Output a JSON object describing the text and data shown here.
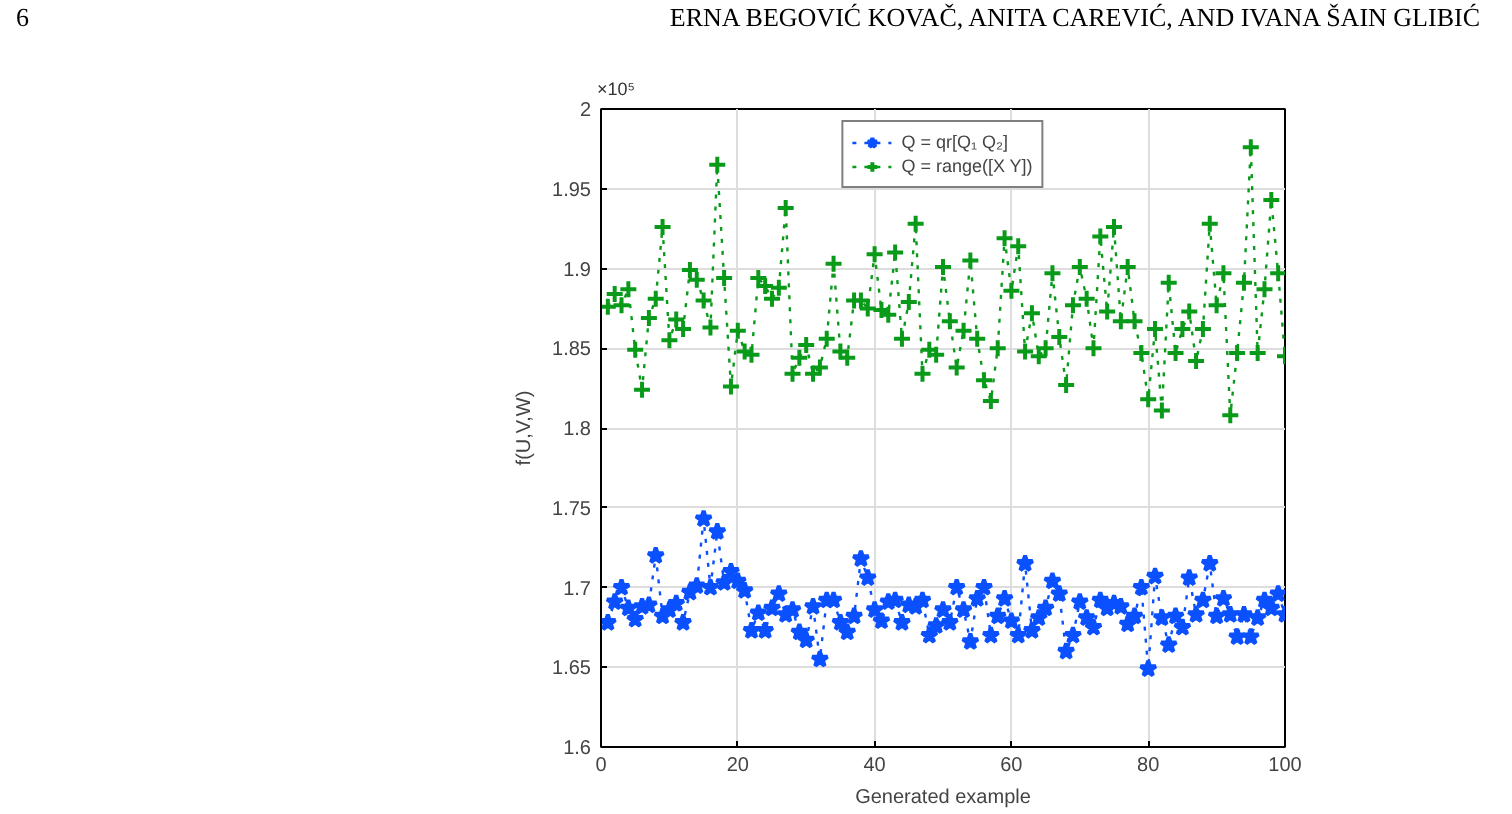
{
  "chart_data": {
    "type": "line",
    "annotations": [
      "6",
      "ERNA BEGOVIĆ KOVAČ, ANITA CAREVIĆ, AND IVANA ŠAIN GLIBIĆ",
      "×10⁵"
    ],
    "xlabel": "Generated example",
    "ylabel": "f(U,V,W)",
    "x": [
      1,
      2,
      3,
      4,
      5,
      6,
      7,
      8,
      9,
      10,
      11,
      12,
      13,
      14,
      15,
      16,
      17,
      18,
      19,
      20,
      21,
      22,
      23,
      24,
      25,
      26,
      27,
      28,
      29,
      30,
      31,
      32,
      33,
      34,
      35,
      36,
      37,
      38,
      39,
      40,
      41,
      42,
      43,
      44,
      45,
      46,
      47,
      48,
      49,
      50,
      51,
      52,
      53,
      54,
      55,
      56,
      57,
      58,
      59,
      60,
      61,
      62,
      63,
      64,
      65,
      66,
      67,
      68,
      69,
      70,
      71,
      72,
      73,
      74,
      75,
      76,
      77,
      78,
      79,
      80,
      81,
      82,
      83,
      84,
      85,
      86,
      87,
      88,
      89,
      90,
      91,
      92,
      93,
      94,
      95,
      96,
      97,
      98,
      99,
      100
    ],
    "series": [
      {
        "name": "Q = qr[Q₁ Q₂]",
        "color": "#0a50ff",
        "marker": "star",
        "values": [
          1.678,
          1.691,
          1.7,
          1.687,
          1.68,
          1.688,
          1.689,
          1.72,
          1.682,
          1.686,
          1.69,
          1.678,
          1.697,
          1.701,
          1.743,
          1.7,
          1.735,
          1.703,
          1.71,
          1.704,
          1.698,
          1.673,
          1.684,
          1.673,
          1.687,
          1.696,
          1.683,
          1.686,
          1.672,
          1.667,
          1.688,
          1.655,
          1.692,
          1.692,
          1.678,
          1.672,
          1.682,
          1.718,
          1.706,
          1.686,
          1.679,
          1.691,
          1.692,
          1.678,
          1.689,
          1.688,
          1.692,
          1.67,
          1.676,
          1.686,
          1.678,
          1.7,
          1.686,
          1.666,
          1.693,
          1.7,
          1.67,
          1.682,
          1.693,
          1.679,
          1.67,
          1.715,
          1.673,
          1.681,
          1.687,
          1.704,
          1.696,
          1.66,
          1.67,
          1.691,
          1.681,
          1.675,
          1.692,
          1.687,
          1.69,
          1.688,
          1.677,
          1.682,
          1.7,
          1.649,
          1.707,
          1.681,
          1.664,
          1.682,
          1.675,
          1.706,
          1.683,
          1.692,
          1.715,
          1.682,
          1.693,
          1.683,
          1.669,
          1.683,
          1.669,
          1.681,
          1.692,
          1.687,
          1.696,
          1.683
        ]
      },
      {
        "name": "Q = range([X Y])",
        "color": "#0a9a1a",
        "marker": "cross",
        "values": [
          1.876,
          1.884,
          1.877,
          1.887,
          1.849,
          1.824,
          1.869,
          1.881,
          1.926,
          1.855,
          1.868,
          1.862,
          1.899,
          1.893,
          1.88,
          1.863,
          1.965,
          1.894,
          1.826,
          1.861,
          1.848,
          1.846,
          1.894,
          1.889,
          1.881,
          1.888,
          1.938,
          1.834,
          1.844,
          1.852,
          1.834,
          1.838,
          1.856,
          1.903,
          1.848,
          1.844,
          1.88,
          1.88,
          1.875,
          1.909,
          1.874,
          1.871,
          1.91,
          1.856,
          1.879,
          1.928,
          1.834,
          1.849,
          1.846,
          1.901,
          1.867,
          1.838,
          1.861,
          1.905,
          1.856,
          1.83,
          1.817,
          1.85,
          1.919,
          1.886,
          1.914,
          1.848,
          1.872,
          1.845,
          1.85,
          1.897,
          1.857,
          1.827,
          1.877,
          1.901,
          1.881,
          1.85,
          1.92,
          1.873,
          1.926,
          1.867,
          1.901,
          1.867,
          1.847,
          1.818,
          1.862,
          1.811,
          1.891,
          1.847,
          1.862,
          1.873,
          1.842,
          1.862,
          1.928,
          1.877,
          1.897,
          1.808,
          1.847,
          1.891,
          1.976,
          1.847,
          1.887,
          1.943,
          1.897,
          1.845
        ]
      }
    ],
    "xlim": [
      0,
      100
    ],
    "xticks": [
      0,
      20,
      40,
      60,
      80,
      100
    ],
    "ylim": [
      1.6,
      2
    ],
    "yticks": [
      1.6,
      1.65,
      1.7,
      1.75,
      1.8,
      1.85,
      1.9,
      1.95,
      2
    ],
    "grid": true,
    "legend": "top",
    "line_style": "dotted"
  }
}
